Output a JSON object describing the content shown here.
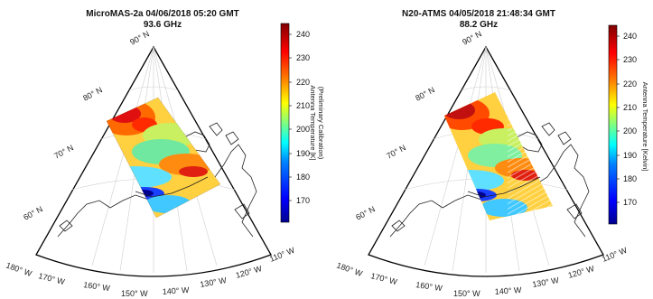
{
  "colorbar_colors": [
    "#00008f",
    "#0000ff",
    "#0080ff",
    "#00ffff",
    "#80ff80",
    "#ffff00",
    "#ff8000",
    "#ff0000",
    "#800000"
  ],
  "panels": [
    {
      "title": "MicroMAS-2a 04/06/2018 05:20 GMT",
      "subtitle": "93.6 GHz",
      "colorbar_label_lines": [
        "Antenna Temperature [K]",
        "(Preliminary Calibration)"
      ],
      "colorbar_ticks": [
        "240",
        "230",
        "220",
        "210",
        "200",
        "190",
        "180",
        "170"
      ],
      "lat_labels": [
        "90° N",
        "80° N",
        "70° N",
        "60° N"
      ],
      "lon_labels": [
        "180° W",
        "170° W",
        "160° W",
        "150° W",
        "140° W",
        "130° W",
        "120° W",
        "110° W"
      ]
    },
    {
      "title": "N20-ATMS 04/05/2018 21:48:34 GMT",
      "subtitle": "88.2 GHz",
      "colorbar_label_lines": [
        "Antenna Temperature [Kelvin]"
      ],
      "colorbar_ticks": [
        "240",
        "230",
        "220",
        "210",
        "200",
        "190",
        "180",
        "170"
      ],
      "lat_labels": [
        "90° N",
        "80° N",
        "70° N",
        "60° N"
      ],
      "lon_labels": [
        "180° W",
        "170° W",
        "160° W",
        "150° W",
        "140° W",
        "130° W",
        "120° W",
        "110° W"
      ]
    }
  ]
}
